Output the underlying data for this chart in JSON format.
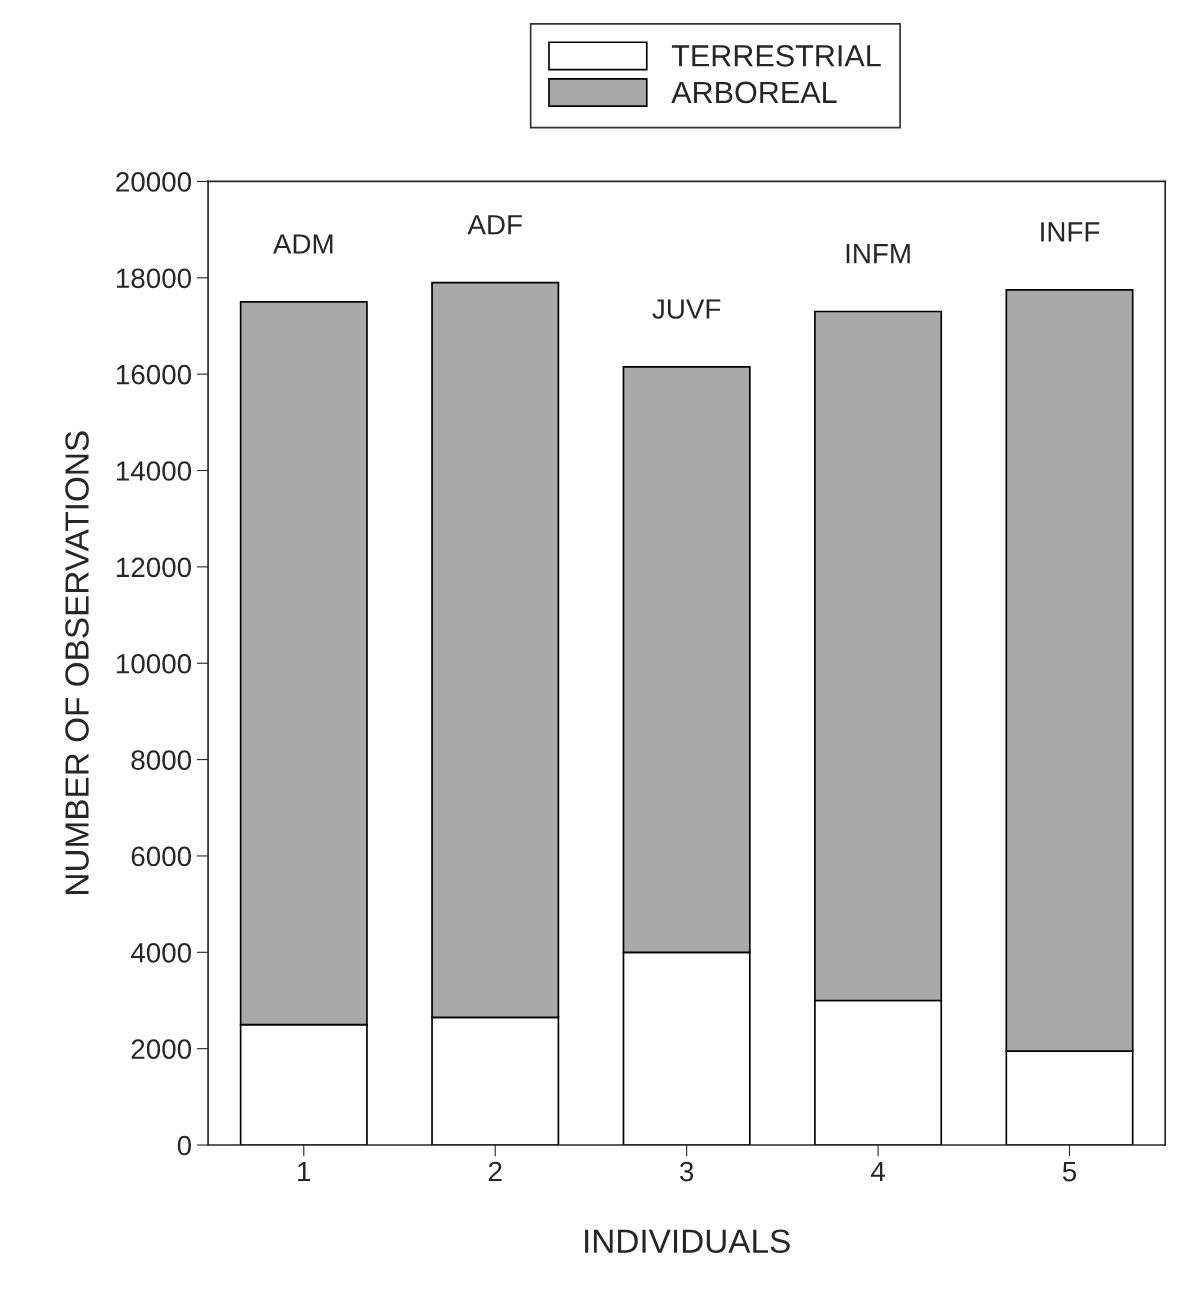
{
  "chart_data": {
    "type": "bar",
    "stacked": true,
    "xlabel": "INDIVIDUALS",
    "ylabel": "NUMBER OF OBSERVATIONS",
    "categories": [
      "1",
      "2",
      "3",
      "4",
      "5"
    ],
    "series": [
      {
        "name": "TERRESTRIAL",
        "color": "#ffffff",
        "values": [
          2500,
          2650,
          4000,
          3000,
          1950
        ]
      },
      {
        "name": "ARBOREAL",
        "color": "#a9a9a9",
        "values": [
          15000,
          15250,
          12150,
          14300,
          15800
        ]
      }
    ],
    "ylim": [
      0,
      20000
    ],
    "yticks": [
      0,
      2000,
      4000,
      6000,
      8000,
      10000,
      12000,
      14000,
      16000,
      18000,
      20000
    ],
    "grid": false,
    "legend": "top",
    "annotations": [
      {
        "text": "ADM",
        "x": "1",
        "y": 17500
      },
      {
        "text": "ADF",
        "x": "2",
        "y": 17900
      },
      {
        "text": "JUVF",
        "x": "3",
        "y": 16150
      },
      {
        "text": "INFM",
        "x": "4",
        "y": 17300
      },
      {
        "text": "INFF",
        "x": "5",
        "y": 17750
      }
    ]
  }
}
